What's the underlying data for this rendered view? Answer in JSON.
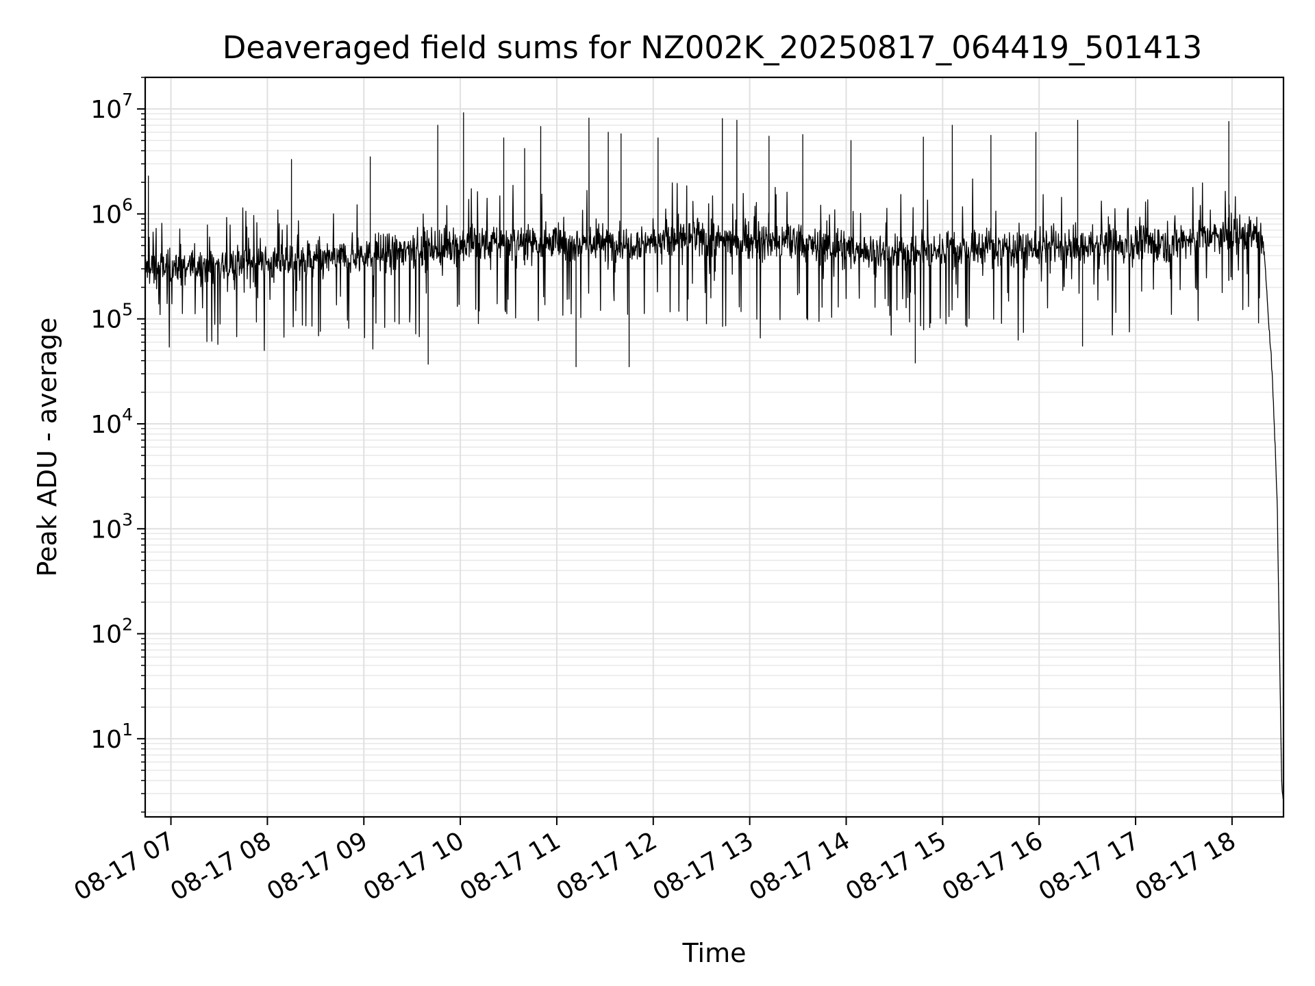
{
  "chart_data": {
    "type": "line",
    "title": "Deaveraged field sums for NZ002K_20250817_064419_501413",
    "xlabel": "Time",
    "ylabel": "Peak ADU - average",
    "x_axis": {
      "kind": "time",
      "range": [
        "08-17 06:44",
        "08-17 18:32"
      ],
      "ticks": [
        "08-17 07",
        "08-17 08",
        "08-17 09",
        "08-17 10",
        "08-17 11",
        "08-17 12",
        "08-17 13",
        "08-17 14",
        "08-17 15",
        "08-17 16",
        "08-17 17",
        "08-17 18"
      ]
    },
    "y_axis": {
      "scale": "log",
      "range": [
        1.8,
        20000000
      ],
      "tick_bases": [
        "10",
        "10",
        "10",
        "10",
        "10",
        "10",
        "10"
      ],
      "tick_exponents": [
        "1",
        "2",
        "3",
        "4",
        "5",
        "6",
        "7"
      ]
    },
    "grid": {
      "major": true,
      "minor": true
    },
    "series": [
      {
        "color": "#000000",
        "description_points": [
          {
            "x": "08-17 06:44",
            "y": 300000
          },
          {
            "x": "08-17 07:30",
            "y": 330000
          },
          {
            "x": "08-17 08:30",
            "y": 360000
          },
          {
            "x": "08-17 09:30",
            "y": 450000
          },
          {
            "x": "08-17 10:30",
            "y": 560000
          },
          {
            "x": "08-17 11:30",
            "y": 520000
          },
          {
            "x": "08-17 12:30",
            "y": 580000
          },
          {
            "x": "08-17 13:30",
            "y": 520000
          },
          {
            "x": "08-17 14:30",
            "y": 420000
          },
          {
            "x": "08-17 15:30",
            "y": 480000
          },
          {
            "x": "08-17 16:30",
            "y": 470000
          },
          {
            "x": "08-17 17:30",
            "y": 560000
          },
          {
            "x": "08-17 18:15",
            "y": 650000
          },
          {
            "x": "08-17 18:20",
            "y": 450000
          },
          {
            "x": "08-17 18:25",
            "y": 30000
          },
          {
            "x": "08-17 18:28",
            "y": 2000
          },
          {
            "x": "08-17 18:31",
            "y": 3
          }
        ],
        "spikes": [
          {
            "x": "08-17 06:46",
            "y": 2300000
          },
          {
            "x": "08-17 08:15",
            "y": 3300000
          },
          {
            "x": "08-17 09:04",
            "y": 3500000
          },
          {
            "x": "08-17 09:46",
            "y": 7000000
          },
          {
            "x": "08-17 10:02",
            "y": 9200000
          },
          {
            "x": "08-17 10:27",
            "y": 5300000
          },
          {
            "x": "08-17 10:40",
            "y": 4200000
          },
          {
            "x": "08-17 10:50",
            "y": 6800000
          },
          {
            "x": "08-17 11:20",
            "y": 8200000
          },
          {
            "x": "08-17 11:32",
            "y": 6000000
          },
          {
            "x": "08-17 11:40",
            "y": 5800000
          },
          {
            "x": "08-17 12:03",
            "y": 5300000
          },
          {
            "x": "08-17 12:43",
            "y": 8100000
          },
          {
            "x": "08-17 12:52",
            "y": 7800000
          },
          {
            "x": "08-17 13:12",
            "y": 5500000
          },
          {
            "x": "08-17 13:33",
            "y": 5700000
          },
          {
            "x": "08-17 14:03",
            "y": 5000000
          },
          {
            "x": "08-17 14:48",
            "y": 5400000
          },
          {
            "x": "08-17 15:06",
            "y": 7000000
          },
          {
            "x": "08-17 15:30",
            "y": 5600000
          },
          {
            "x": "08-17 15:58",
            "y": 6000000
          },
          {
            "x": "08-17 16:24",
            "y": 7800000
          },
          {
            "x": "08-17 17:58",
            "y": 7600000
          }
        ],
        "dips": [
          {
            "x": "08-17 09:40",
            "y": 37000
          },
          {
            "x": "08-17 11:12",
            "y": 35000
          },
          {
            "x": "08-17 11:45",
            "y": 35000
          },
          {
            "x": "08-17 14:43",
            "y": 38000
          },
          {
            "x": "08-17 16:27",
            "y": 55000
          }
        ]
      }
    ]
  }
}
